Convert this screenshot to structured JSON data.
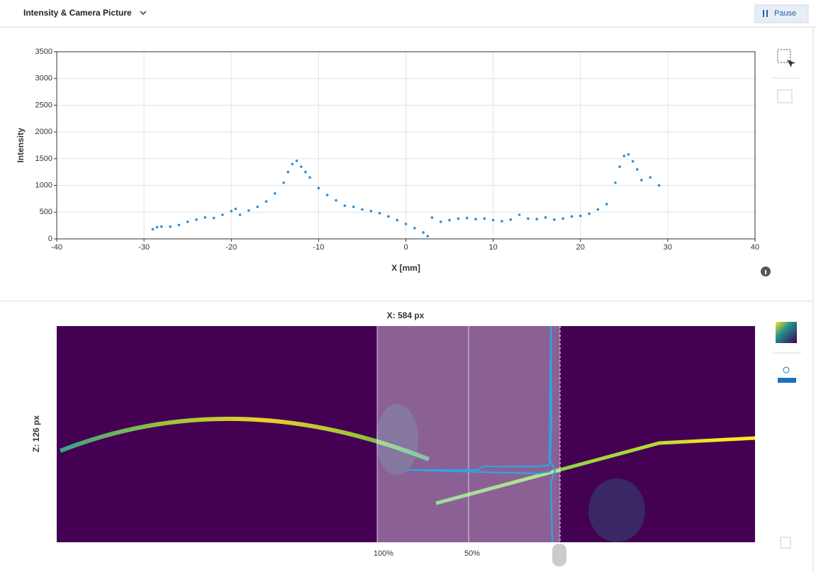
{
  "header": {
    "title": "Intensity & Camera Picture",
    "pause_button": "Pause"
  },
  "chart_data": {
    "type": "scatter",
    "x_label": "X [mm]",
    "y_label": "Intensity",
    "color": "#2a8fd8",
    "grid": true,
    "xlim": [
      -40,
      40
    ],
    "xticks": [
      -40,
      -30,
      -20,
      -10,
      0,
      10,
      20,
      30,
      40
    ],
    "ylim": [
      0,
      3500
    ],
    "yticks": [
      0,
      500,
      1000,
      1500,
      2000,
      2500,
      3000,
      3500
    ],
    "series": [
      {
        "x": [
          -29,
          -28.5,
          -28,
          -27,
          -26,
          -25,
          -24,
          -23,
          -22,
          -21,
          -20,
          -19.5,
          -19,
          -18,
          -17,
          -16,
          -15,
          -14,
          -13.5,
          -13,
          -12.5,
          -12,
          -11.5,
          -11,
          -10,
          -9,
          -8,
          -7,
          -6,
          -5,
          -4,
          -3,
          -2,
          -1,
          0,
          1,
          2,
          2.5,
          3,
          4,
          5,
          6,
          7,
          8,
          9,
          10,
          11,
          12,
          13,
          14,
          15,
          16,
          17,
          18,
          19,
          20,
          21,
          22,
          23,
          24,
          24.5,
          25,
          25.5,
          26,
          26.5,
          27,
          28,
          29
        ],
        "values": [
          180,
          220,
          230,
          230,
          260,
          320,
          360,
          400,
          390,
          450,
          520,
          560,
          450,
          530,
          600,
          700,
          850,
          1050,
          1250,
          1400,
          1460,
          1350,
          1250,
          1150,
          950,
          820,
          720,
          620,
          600,
          550,
          520,
          480,
          420,
          350,
          280,
          200,
          120,
          50,
          400,
          320,
          350,
          380,
          390,
          370,
          380,
          350,
          330,
          360,
          450,
          380,
          370,
          400,
          360,
          380,
          420,
          430,
          470,
          550,
          650,
          1050,
          1350,
          1550,
          1580,
          1450,
          1300,
          1100,
          1150,
          1000
        ]
      }
    ]
  },
  "camera": {
    "x_label": "X: 584 px",
    "z_label": "Z: 126 px",
    "scale_labels": [
      "100%",
      "50%"
    ]
  }
}
